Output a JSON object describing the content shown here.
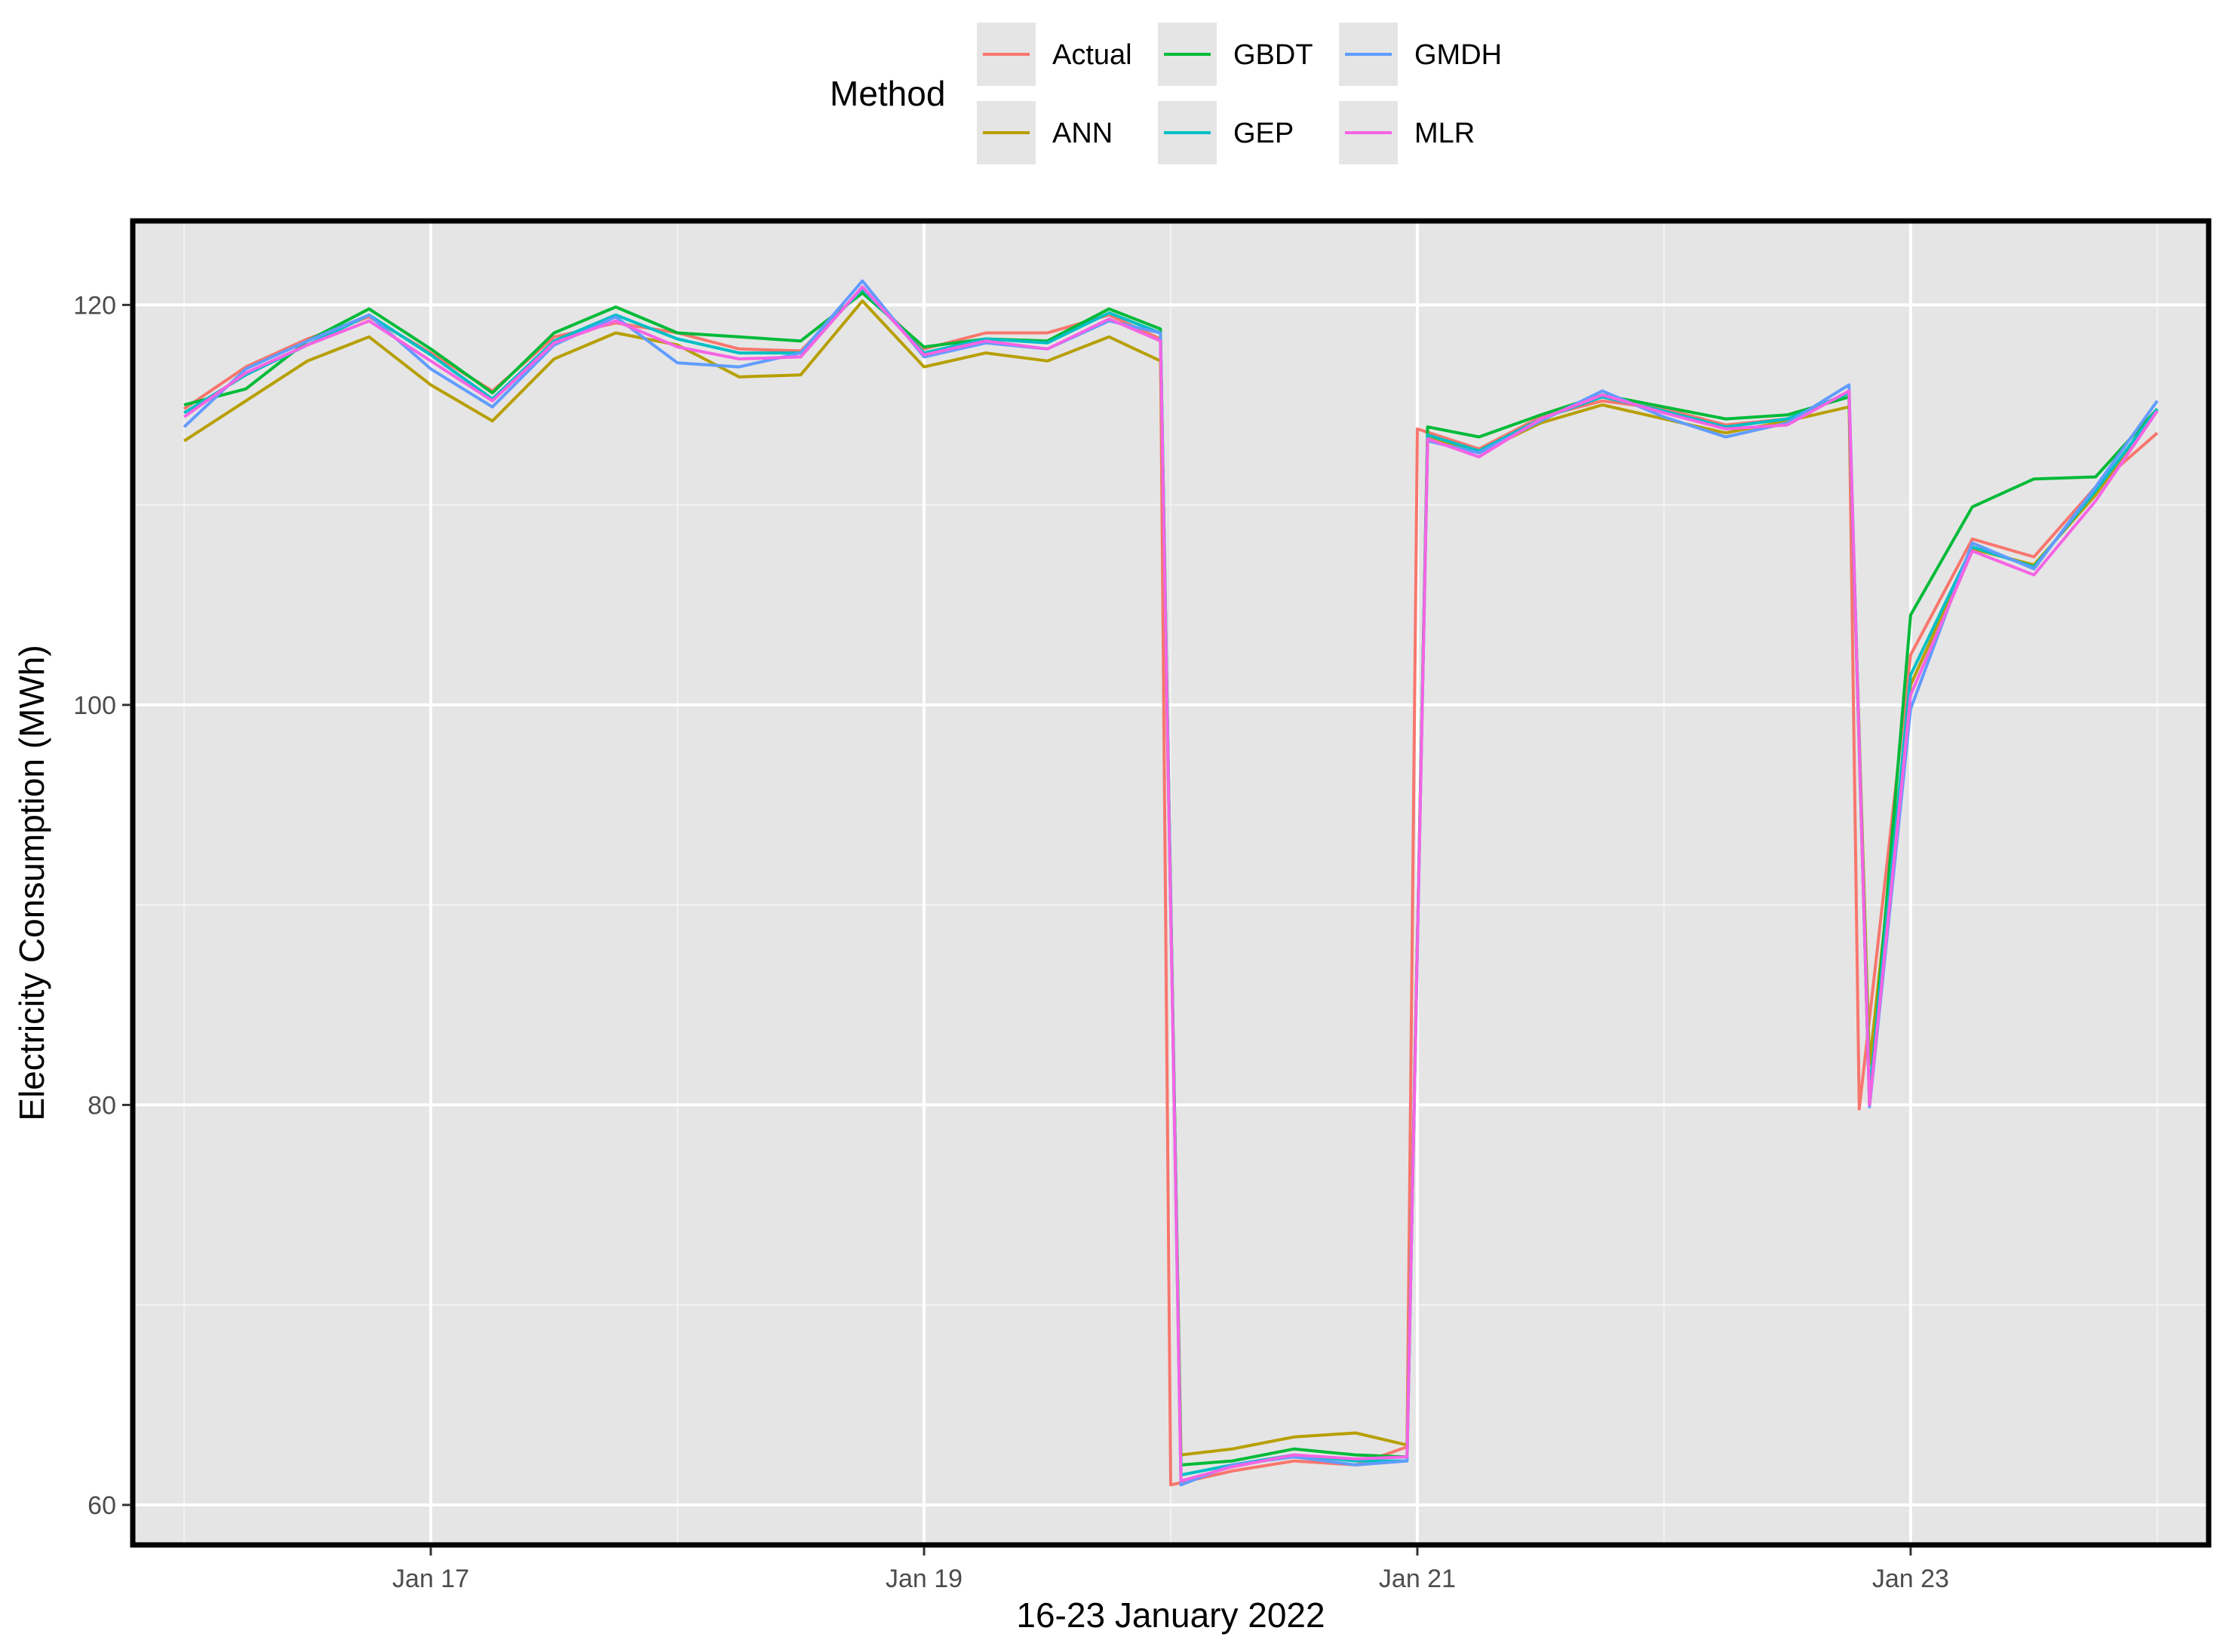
{
  "chart_data": {
    "type": "line",
    "xlabel": "16-23 January 2022",
    "ylabel": "Electricity Consumption (MWh)",
    "x_ticks": [
      "Jan 17",
      "Jan 19",
      "Jan 21",
      "Jan 23"
    ],
    "y_ticks": [
      "60",
      "80",
      "100",
      "120"
    ],
    "ylim": [
      58,
      124.2
    ],
    "xlim": [
      "2022-01-15 19:00",
      "2022-01-24 05:00"
    ],
    "grid": true,
    "legend": {
      "title": "Method",
      "position": "top",
      "entries": [
        {
          "name": "Actual",
          "color": "#F8766D"
        },
        {
          "name": "ANN",
          "color": "#B79F00"
        },
        {
          "name": "GBDT",
          "color": "#00BA38"
        },
        {
          "name": "GEP",
          "color": "#00BFC4"
        },
        {
          "name": "GMDH",
          "color": "#619CFF"
        },
        {
          "name": "MLR",
          "color": "#F564E3"
        }
      ]
    },
    "series": [
      {
        "name": "Actual",
        "color": "#F8766D",
        "x": [
          "2022-01-16 00:00",
          "2022-01-16 06:00",
          "2022-01-16 12:00",
          "2022-01-16 18:00",
          "2022-01-17 00:00",
          "2022-01-17 06:00",
          "2022-01-17 12:00",
          "2022-01-17 18:00",
          "2022-01-18 00:00",
          "2022-01-18 06:00",
          "2022-01-18 12:00",
          "2022-01-18 18:00",
          "2022-01-19 00:00",
          "2022-01-19 06:00",
          "2022-01-19 12:00",
          "2022-01-19 18:00",
          "2022-01-19 23:00",
          "2022-01-20 00:00",
          "2022-01-20 06:00",
          "2022-01-20 12:00",
          "2022-01-20 18:00",
          "2022-01-20 23:00",
          "2022-01-21 00:00",
          "2022-01-21 06:00",
          "2022-01-21 12:00",
          "2022-01-21 18:00",
          "2022-01-22 00:00",
          "2022-01-22 06:00",
          "2022-01-22 12:00",
          "2022-01-22 18:00",
          "2022-01-22 19:00",
          "2022-01-23 00:00",
          "2022-01-23 06:00",
          "2022-01-23 12:00",
          "2022-01-23 18:00",
          "2022-01-24 00:00"
        ],
        "y": [
          114.8,
          116.9,
          118.3,
          119.4,
          117.6,
          115.7,
          118.4,
          119.1,
          118.6,
          117.8,
          117.7,
          120.8,
          117.8,
          118.6,
          118.6,
          119.5,
          118.3,
          61.0,
          61.7,
          62.2,
          62.0,
          62.9,
          113.8,
          112.8,
          114.4,
          115.2,
          114.8,
          114.0,
          114.3,
          115.6,
          79.8,
          102.5,
          108.3,
          107.4,
          110.9,
          113.6
        ]
      },
      {
        "name": "ANN",
        "color": "#B79F00",
        "x": [
          "2022-01-16 00:00",
          "2022-01-16 06:00",
          "2022-01-16 12:00",
          "2022-01-16 18:00",
          "2022-01-17 00:00",
          "2022-01-17 06:00",
          "2022-01-17 12:00",
          "2022-01-17 18:00",
          "2022-01-18 00:00",
          "2022-01-18 06:00",
          "2022-01-18 12:00",
          "2022-01-18 18:00",
          "2022-01-19 00:00",
          "2022-01-19 06:00",
          "2022-01-19 12:00",
          "2022-01-19 18:00",
          "2022-01-19 23:00",
          "2022-01-20 01:00",
          "2022-01-20 06:00",
          "2022-01-20 12:00",
          "2022-01-20 18:00",
          "2022-01-20 23:00",
          "2022-01-21 01:00",
          "2022-01-21 06:00",
          "2022-01-21 12:00",
          "2022-01-21 18:00",
          "2022-01-22 00:00",
          "2022-01-22 06:00",
          "2022-01-22 12:00",
          "2022-01-22 18:00",
          "2022-01-22 20:00",
          "2022-01-23 00:00",
          "2022-01-23 06:00",
          "2022-01-23 12:00",
          "2022-01-23 18:00",
          "2022-01-24 00:00"
        ],
        "y": [
          113.2,
          115.2,
          117.2,
          118.4,
          116.0,
          114.2,
          117.3,
          118.6,
          118.0,
          116.4,
          116.5,
          120.2,
          116.9,
          117.6,
          117.2,
          118.4,
          117.2,
          62.5,
          62.8,
          63.4,
          63.6,
          63.0,
          113.4,
          112.6,
          114.1,
          115.0,
          114.3,
          113.6,
          114.2,
          114.9,
          82.0,
          101.0,
          107.8,
          107.0,
          110.5,
          114.8
        ]
      },
      {
        "name": "GBDT",
        "color": "#00BA38",
        "x": [
          "2022-01-16 00:00",
          "2022-01-16 06:00",
          "2022-01-16 12:00",
          "2022-01-16 18:00",
          "2022-01-17 00:00",
          "2022-01-17 06:00",
          "2022-01-17 12:00",
          "2022-01-17 18:00",
          "2022-01-18 00:00",
          "2022-01-18 06:00",
          "2022-01-18 12:00",
          "2022-01-18 18:00",
          "2022-01-19 00:00",
          "2022-01-19 06:00",
          "2022-01-19 12:00",
          "2022-01-19 18:00",
          "2022-01-19 23:00",
          "2022-01-20 01:00",
          "2022-01-20 06:00",
          "2022-01-20 12:00",
          "2022-01-20 18:00",
          "2022-01-20 23:00",
          "2022-01-21 01:00",
          "2022-01-21 06:00",
          "2022-01-21 12:00",
          "2022-01-21 18:00",
          "2022-01-22 00:00",
          "2022-01-22 06:00",
          "2022-01-22 12:00",
          "2022-01-22 18:00",
          "2022-01-22 20:00",
          "2022-01-23 00:00",
          "2022-01-23 06:00",
          "2022-01-23 12:00",
          "2022-01-23 18:00",
          "2022-01-24 00:00"
        ],
        "y": [
          115.0,
          115.8,
          118.2,
          119.8,
          117.8,
          115.6,
          118.6,
          119.9,
          118.6,
          118.4,
          118.2,
          120.6,
          117.9,
          118.3,
          118.2,
          119.8,
          118.8,
          62.0,
          62.2,
          62.8,
          62.5,
          62.4,
          113.9,
          113.4,
          114.5,
          115.5,
          114.9,
          114.3,
          114.5,
          115.4,
          80.0,
          104.5,
          109.9,
          111.3,
          111.4,
          114.8
        ]
      },
      {
        "name": "GEP",
        "color": "#00BFC4",
        "x": [
          "2022-01-16 00:00",
          "2022-01-16 06:00",
          "2022-01-16 12:00",
          "2022-01-16 18:00",
          "2022-01-17 00:00",
          "2022-01-17 06:00",
          "2022-01-17 12:00",
          "2022-01-17 18:00",
          "2022-01-18 00:00",
          "2022-01-18 06:00",
          "2022-01-18 12:00",
          "2022-01-18 18:00",
          "2022-01-19 00:00",
          "2022-01-19 06:00",
          "2022-01-19 12:00",
          "2022-01-19 18:00",
          "2022-01-19 23:00",
          "2022-01-20 01:00",
          "2022-01-20 06:00",
          "2022-01-20 12:00",
          "2022-01-20 18:00",
          "2022-01-20 23:00",
          "2022-01-21 01:00",
          "2022-01-21 06:00",
          "2022-01-21 12:00",
          "2022-01-21 18:00",
          "2022-01-22 00:00",
          "2022-01-22 06:00",
          "2022-01-22 12:00",
          "2022-01-22 18:00",
          "2022-01-22 20:00",
          "2022-01-23 00:00",
          "2022-01-23 06:00",
          "2022-01-23 12:00",
          "2022-01-23 18:00",
          "2022-01-24 00:00"
        ],
        "y": [
          114.6,
          116.5,
          118.0,
          119.5,
          117.5,
          115.3,
          118.2,
          119.5,
          118.3,
          117.6,
          117.6,
          120.8,
          117.6,
          118.3,
          118.1,
          119.6,
          118.6,
          61.5,
          62.0,
          62.5,
          62.2,
          62.2,
          113.5,
          112.7,
          114.3,
          115.4,
          114.7,
          113.9,
          114.3,
          115.6,
          80.5,
          101.5,
          107.9,
          106.9,
          110.7,
          114.8
        ]
      },
      {
        "name": "GMDH",
        "color": "#619CFF",
        "x": [
          "2022-01-16 00:00",
          "2022-01-16 06:00",
          "2022-01-16 12:00",
          "2022-01-16 18:00",
          "2022-01-17 00:00",
          "2022-01-17 06:00",
          "2022-01-17 12:00",
          "2022-01-17 18:00",
          "2022-01-18 00:00",
          "2022-01-18 06:00",
          "2022-01-18 12:00",
          "2022-01-18 18:00",
          "2022-01-19 00:00",
          "2022-01-19 06:00",
          "2022-01-19 12:00",
          "2022-01-19 18:00",
          "2022-01-19 23:00",
          "2022-01-20 01:00",
          "2022-01-20 06:00",
          "2022-01-20 12:00",
          "2022-01-20 18:00",
          "2022-01-20 23:00",
          "2022-01-21 01:00",
          "2022-01-21 06:00",
          "2022-01-21 12:00",
          "2022-01-21 18:00",
          "2022-01-22 00:00",
          "2022-01-22 06:00",
          "2022-01-22 12:00",
          "2022-01-22 18:00",
          "2022-01-22 20:00",
          "2022-01-23 00:00",
          "2022-01-23 06:00",
          "2022-01-23 12:00",
          "2022-01-23 18:00",
          "2022-01-24 00:00"
        ],
        "y": [
          113.9,
          116.8,
          118.2,
          119.5,
          116.8,
          114.9,
          118.0,
          119.4,
          117.1,
          116.9,
          117.6,
          121.2,
          117.4,
          118.1,
          117.8,
          119.2,
          118.6,
          61.0,
          62.0,
          62.4,
          62.0,
          62.2,
          113.2,
          112.6,
          114.2,
          115.7,
          114.4,
          113.4,
          114.1,
          116.0,
          79.9,
          99.8,
          108.1,
          106.8,
          110.9,
          115.2
        ]
      },
      {
        "name": "MLR",
        "color": "#F564E3",
        "x": [
          "2022-01-16 00:00",
          "2022-01-16 06:00",
          "2022-01-16 12:00",
          "2022-01-16 18:00",
          "2022-01-17 00:00",
          "2022-01-17 06:00",
          "2022-01-17 12:00",
          "2022-01-17 18:00",
          "2022-01-18 00:00",
          "2022-01-18 06:00",
          "2022-01-18 12:00",
          "2022-01-18 18:00",
          "2022-01-19 00:00",
          "2022-01-19 06:00",
          "2022-01-19 12:00",
          "2022-01-19 18:00",
          "2022-01-19 23:00",
          "2022-01-20 01:00",
          "2022-01-20 06:00",
          "2022-01-20 12:00",
          "2022-01-20 18:00",
          "2022-01-20 23:00",
          "2022-01-21 01:00",
          "2022-01-21 06:00",
          "2022-01-21 12:00",
          "2022-01-21 18:00",
          "2022-01-22 00:00",
          "2022-01-22 06:00",
          "2022-01-22 12:00",
          "2022-01-22 18:00",
          "2022-01-22 20:00",
          "2022-01-23 00:00",
          "2022-01-23 06:00",
          "2022-01-23 12:00",
          "2022-01-23 18:00",
          "2022-01-24 00:00"
        ],
        "y": [
          114.4,
          116.6,
          118.0,
          119.2,
          117.2,
          115.2,
          118.1,
          119.2,
          117.9,
          117.3,
          117.4,
          120.9,
          117.5,
          118.2,
          117.8,
          119.3,
          118.2,
          61.2,
          61.9,
          62.5,
          62.3,
          62.4,
          113.3,
          112.4,
          114.3,
          115.5,
          114.6,
          113.8,
          114.0,
          115.7,
          80.0,
          100.5,
          107.7,
          106.5,
          110.2,
          114.7
        ]
      }
    ]
  }
}
